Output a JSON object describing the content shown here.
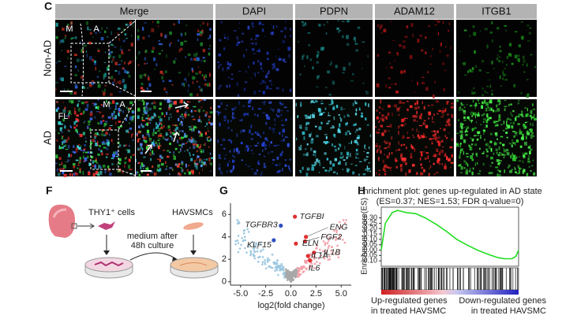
{
  "panel_c": {
    "label": "C",
    "columns": [
      "Merge",
      "DAPI",
      "PDPN",
      "ADAM12",
      "ITGB1"
    ],
    "rows": [
      "Non-AD",
      "AD"
    ],
    "insets": {
      "non_ad": [
        "M",
        "A"
      ],
      "ad": [
        "FL",
        "M",
        "A"
      ]
    }
  },
  "panel_f": {
    "label": "F",
    "cells": "THY1⁺ cells",
    "havsmc": "HAVSMCs",
    "medium": [
      "medium after",
      "48h culture"
    ]
  },
  "panel_g": {
    "label": "G",
    "xlabel": "log2(fold change)",
    "xlim": [
      -6,
      6
    ],
    "ylim": [
      -0.3,
      7
    ],
    "xticks": [
      {
        "value": -5,
        "label": "-5.0"
      },
      {
        "value": -2.5,
        "label": "-2.5"
      },
      {
        "value": 0,
        "label": "0.0"
      },
      {
        "value": 2.5,
        "label": "2.5"
      },
      {
        "value": 5,
        "label": "5.0"
      }
    ],
    "yticks": [
      0,
      2,
      4,
      6
    ],
    "genes": [
      {
        "name": "TGFBI",
        "x": 0.4,
        "y": 5.8,
        "color": "#e03030",
        "label_color": "#222222"
      },
      {
        "name": "TGFBR3",
        "x": -1.0,
        "y": 5.0,
        "color": "#3050c0",
        "label_color": "#222222"
      },
      {
        "name": "ENG",
        "x": 1.5,
        "y": 4.0,
        "color": "#e03030",
        "label_color": "#222222"
      },
      {
        "name": "FGF2",
        "x": 1.4,
        "y": 3.6,
        "color": "#e03030",
        "label_color": "#222222"
      },
      {
        "name": "ELN",
        "x": 0.5,
        "y": 3.4,
        "color": "#e03030",
        "label_color": "#222222"
      },
      {
        "name": "KLF15",
        "x": -1.7,
        "y": 3.7,
        "color": "#3050c0",
        "label_color": "#222222"
      },
      {
        "name": "IL1B",
        "x": 2.3,
        "y": 2.6,
        "color": "#e03030",
        "label_color": "#222222"
      },
      {
        "name": "IL1A",
        "x": 1.7,
        "y": 2.3,
        "color": "#e03030",
        "label_color": "#c0282d"
      },
      {
        "name": "IL6",
        "x": 1.9,
        "y": 1.9,
        "color": "#e03030",
        "label_color": "#c0282d"
      }
    ]
  },
  "panel_h": {
    "label": "H",
    "title": "Enrichment plot: genes up-regulated in AD state",
    "subtitle": "(ES=0.37; NES=1.53; FDR q-value=0)",
    "ylabel": "Enrichment score(ES)",
    "ylim": [
      -0.15,
      0.4
    ],
    "xlim": [
      0,
      1
    ],
    "yticks": [
      {
        "value": 0.3,
        "label": "0.30"
      },
      {
        "value": 0.25,
        "label": "0.25"
      },
      {
        "value": 0.2,
        "label": "0.20"
      },
      {
        "value": 0.15,
        "label": "0.15"
      },
      {
        "value": 0.1,
        "label": "0.10"
      },
      {
        "value": 0.05,
        "label": "0.05"
      },
      {
        "value": 0,
        "label": "0.00"
      },
      {
        "value": -0.05,
        "label": "-0.05"
      },
      {
        "value": -0.1,
        "label": "-0.10"
      }
    ],
    "curve": {
      "x": [
        0,
        0.03,
        0.08,
        0.12,
        0.18,
        0.25,
        0.32,
        0.4,
        0.48,
        0.55,
        0.62,
        0.7,
        0.78,
        0.85,
        0.9,
        0.95,
        0.98,
        1
      ],
      "y": [
        0,
        0.25,
        0.35,
        0.37,
        0.35,
        0.34,
        0.3,
        0.24,
        0.17,
        0.1,
        0.05,
        0,
        -0.04,
        -0.07,
        -0.08,
        -0.08,
        -0.06,
        0
      ]
    },
    "left_label": [
      "Up-regulated genes",
      "in treated HAVSMC"
    ],
    "right_label": [
      "Down-regulated genes",
      "in treated HAVSMC"
    ]
  }
}
